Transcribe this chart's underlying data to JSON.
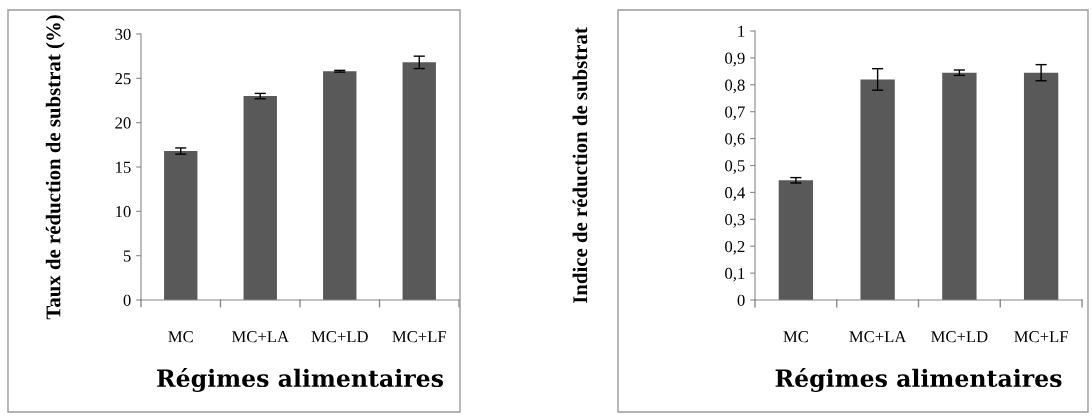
{
  "chart_data": [
    {
      "type": "bar",
      "categories": [
        "MC",
        "MC+LA",
        "MC+LD",
        "MC+LF"
      ],
      "xlabel": "Régimes alimentaires",
      "ylabel": "Taux de réduction de substrat (%)",
      "color": "#595959",
      "values": [
        16.8,
        23.0,
        25.8,
        26.8
      ],
      "errors": [
        0.35,
        0.3,
        0.1,
        0.7
      ],
      "ylim": [
        0,
        30
      ],
      "yticks": [
        0,
        5,
        10,
        15,
        20,
        25,
        30
      ],
      "grid": false,
      "legend": false
    },
    {
      "type": "bar",
      "categories": [
        "MC",
        "MC+LA",
        "MC+LD",
        "MC+LF"
      ],
      "xlabel": "Régimes alimentaires",
      "ylabel": "Indice de réduction de substrat",
      "color": "#595959",
      "values": [
        0.445,
        0.82,
        0.845,
        0.845
      ],
      "errors": [
        0.01,
        0.04,
        0.01,
        0.03
      ],
      "ylim": [
        0,
        1
      ],
      "yticks": [
        0,
        {
          "value": 0.1,
          "label": "0,1"
        },
        {
          "value": 0.2,
          "label": "0,2"
        },
        {
          "value": 0.3,
          "label": "0,3"
        },
        {
          "value": 0.4,
          "label": "0,4"
        },
        {
          "value": 0.5,
          "label": "0,5"
        },
        {
          "value": 0.6,
          "label": "0,6"
        },
        {
          "value": 0.7,
          "label": "0,7"
        },
        {
          "value": 0.8,
          "label": "0,8"
        },
        {
          "value": 0.9,
          "label": "0,9"
        },
        1
      ],
      "grid": false,
      "legend": false
    }
  ]
}
